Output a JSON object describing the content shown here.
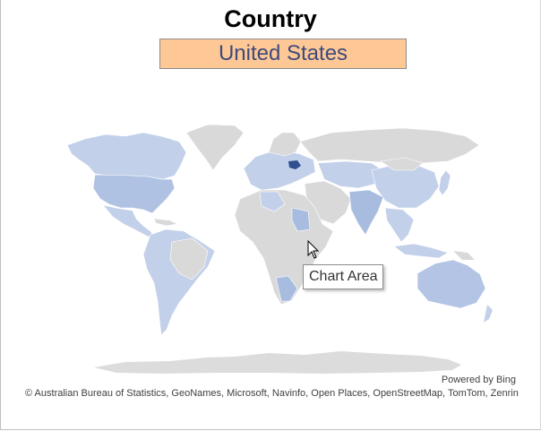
{
  "title": "Country",
  "selector": {
    "value": "United States"
  },
  "tooltip": {
    "label": "Chart Area"
  },
  "attribution": {
    "powered_by": "Powered by Bing",
    "credits": "© Australian Bureau of Statistics, GeoNames, Microsoft, Navinfo, Open Places, OpenStreetMap, TomTom, Zenrin"
  },
  "colors": {
    "selector_bg": "#fdc895",
    "selector_text": "#3f4a7c",
    "land": "#d9d9d9",
    "data_light": "#c3d0ea",
    "data_medium": "#a8bce0",
    "highlight": "#2f4f8f"
  },
  "icons": {
    "cursor": "arrow-cursor-icon"
  }
}
